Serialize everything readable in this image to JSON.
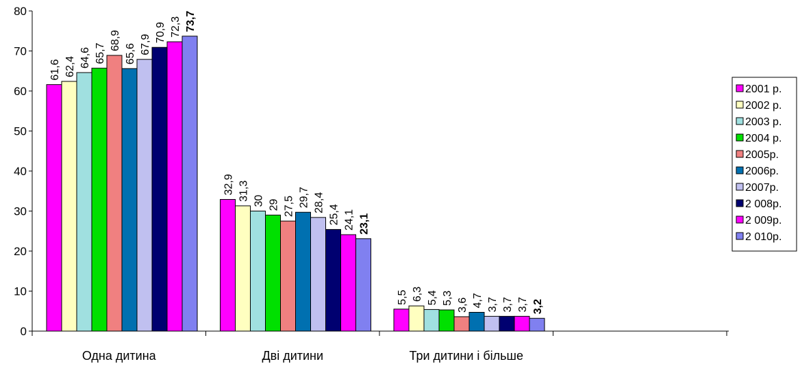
{
  "chart_data": {
    "type": "bar",
    "title": "",
    "xlabel": "",
    "ylabel": "",
    "ylim": [
      0,
      80
    ],
    "yticks": [
      "0",
      "10",
      "20",
      "30",
      "40",
      "50",
      "60",
      "70",
      "80"
    ],
    "grid": false,
    "legend_position": "right",
    "categories": [
      "Одна дитина",
      "Дві дитини",
      "Три дитини і більше"
    ],
    "series": [
      {
        "name": "2001 р.",
        "color": "#ff00ff",
        "values": [
          61.6,
          32.9,
          5.5
        ],
        "labels": [
          "61,6",
          "32,9",
          "5,5"
        ],
        "bold": [
          false,
          false,
          false
        ]
      },
      {
        "name": "2002 р.",
        "color": "#ffffc0",
        "values": [
          62.4,
          31.3,
          6.3
        ],
        "labels": [
          "62,4",
          "31,3",
          "6,3"
        ],
        "bold": [
          false,
          false,
          false
        ]
      },
      {
        "name": "2003 р.",
        "color": "#a0e0e0",
        "values": [
          64.6,
          30,
          5.4
        ],
        "labels": [
          "64,6",
          "30",
          "5,4"
        ],
        "bold": [
          false,
          false,
          false
        ]
      },
      {
        "name": "2004 р.",
        "color": "#00e000",
        "values": [
          65.7,
          29,
          5.3
        ],
        "labels": [
          "65,7",
          "29",
          "5,3"
        ],
        "bold": [
          false,
          false,
          false
        ]
      },
      {
        "name": "2005р.",
        "color": "#f08080",
        "values": [
          68.9,
          27.5,
          3.6
        ],
        "labels": [
          "68,9",
          "27,5",
          "3,6"
        ],
        "bold": [
          false,
          false,
          false
        ]
      },
      {
        "name": "2006р.",
        "color": "#0070b0",
        "values": [
          65.6,
          29.7,
          4.7
        ],
        "labels": [
          "65,6",
          "29,7",
          "4,7"
        ],
        "bold": [
          false,
          false,
          false
        ]
      },
      {
        "name": "2007р.",
        "color": "#c0c0f0",
        "values": [
          67.9,
          28.4,
          3.7
        ],
        "labels": [
          "67,9",
          "28,4",
          "3,7"
        ],
        "bold": [
          false,
          false,
          false
        ]
      },
      {
        "name": "2 008р.",
        "color": "#000070",
        "values": [
          70.9,
          25.4,
          3.7
        ],
        "labels": [
          "70,9",
          "25,4",
          "3,7"
        ],
        "bold": [
          false,
          false,
          false
        ]
      },
      {
        "name": "2 009р.",
        "color": "#ff00ff",
        "values": [
          72.3,
          24.1,
          3.7
        ],
        "labels": [
          "72,3",
          "24,1",
          "3,7"
        ],
        "bold": [
          false,
          false,
          false
        ]
      },
      {
        "name": "2 010р.",
        "color": "#8080f0",
        "values": [
          73.7,
          23.1,
          3.2
        ],
        "labels": [
          "73,7",
          "23,1",
          "3,2"
        ],
        "bold": [
          true,
          true,
          true
        ]
      }
    ]
  }
}
